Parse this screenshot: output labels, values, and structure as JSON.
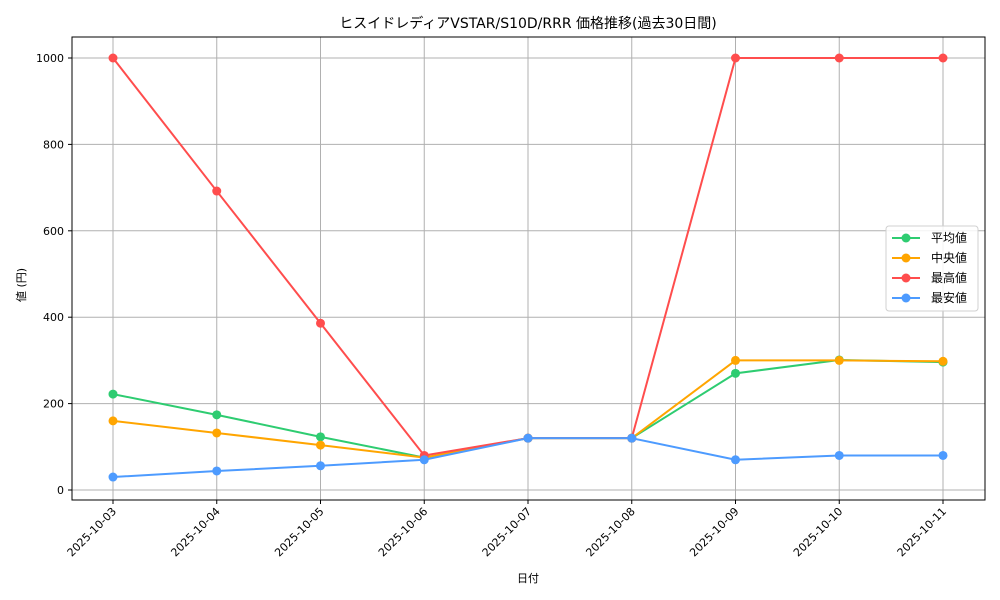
{
  "chart_data": {
    "type": "line",
    "title": "ヒスイドレディアVSTAR/S10D/RRR 価格推移(過去30日間)",
    "xlabel": "日付",
    "ylabel": "値 (円)",
    "categories": [
      "2025-10-03",
      "2025-10-04",
      "2025-10-05",
      "2025-10-06",
      "2025-10-07",
      "2025-10-08",
      "2025-10-09",
      "2025-10-10",
      "2025-10-11"
    ],
    "ylim": [
      -30,
      1050
    ],
    "yticks": [
      0,
      200,
      400,
      600,
      800,
      1000
    ],
    "grid": true,
    "legend_position": "center right",
    "series": [
      {
        "name": "平均値",
        "color": "#2ecc71",
        "values": [
          222,
          174,
          123,
          75,
          120,
          120,
          270,
          301,
          296
        ]
      },
      {
        "name": "中央値",
        "color": "#ffa500",
        "values": [
          160,
          132,
          104,
          75,
          120,
          120,
          300,
          300,
          298
        ]
      },
      {
        "name": "最高値",
        "color": "#ff4d4d",
        "values": [
          1000,
          692,
          386,
          80,
          120,
          120,
          1000,
          1000,
          1000
        ]
      },
      {
        "name": "最安値",
        "color": "#4d9bff",
        "values": [
          30,
          44,
          56,
          70,
          120,
          120,
          70,
          80,
          80
        ]
      }
    ]
  }
}
